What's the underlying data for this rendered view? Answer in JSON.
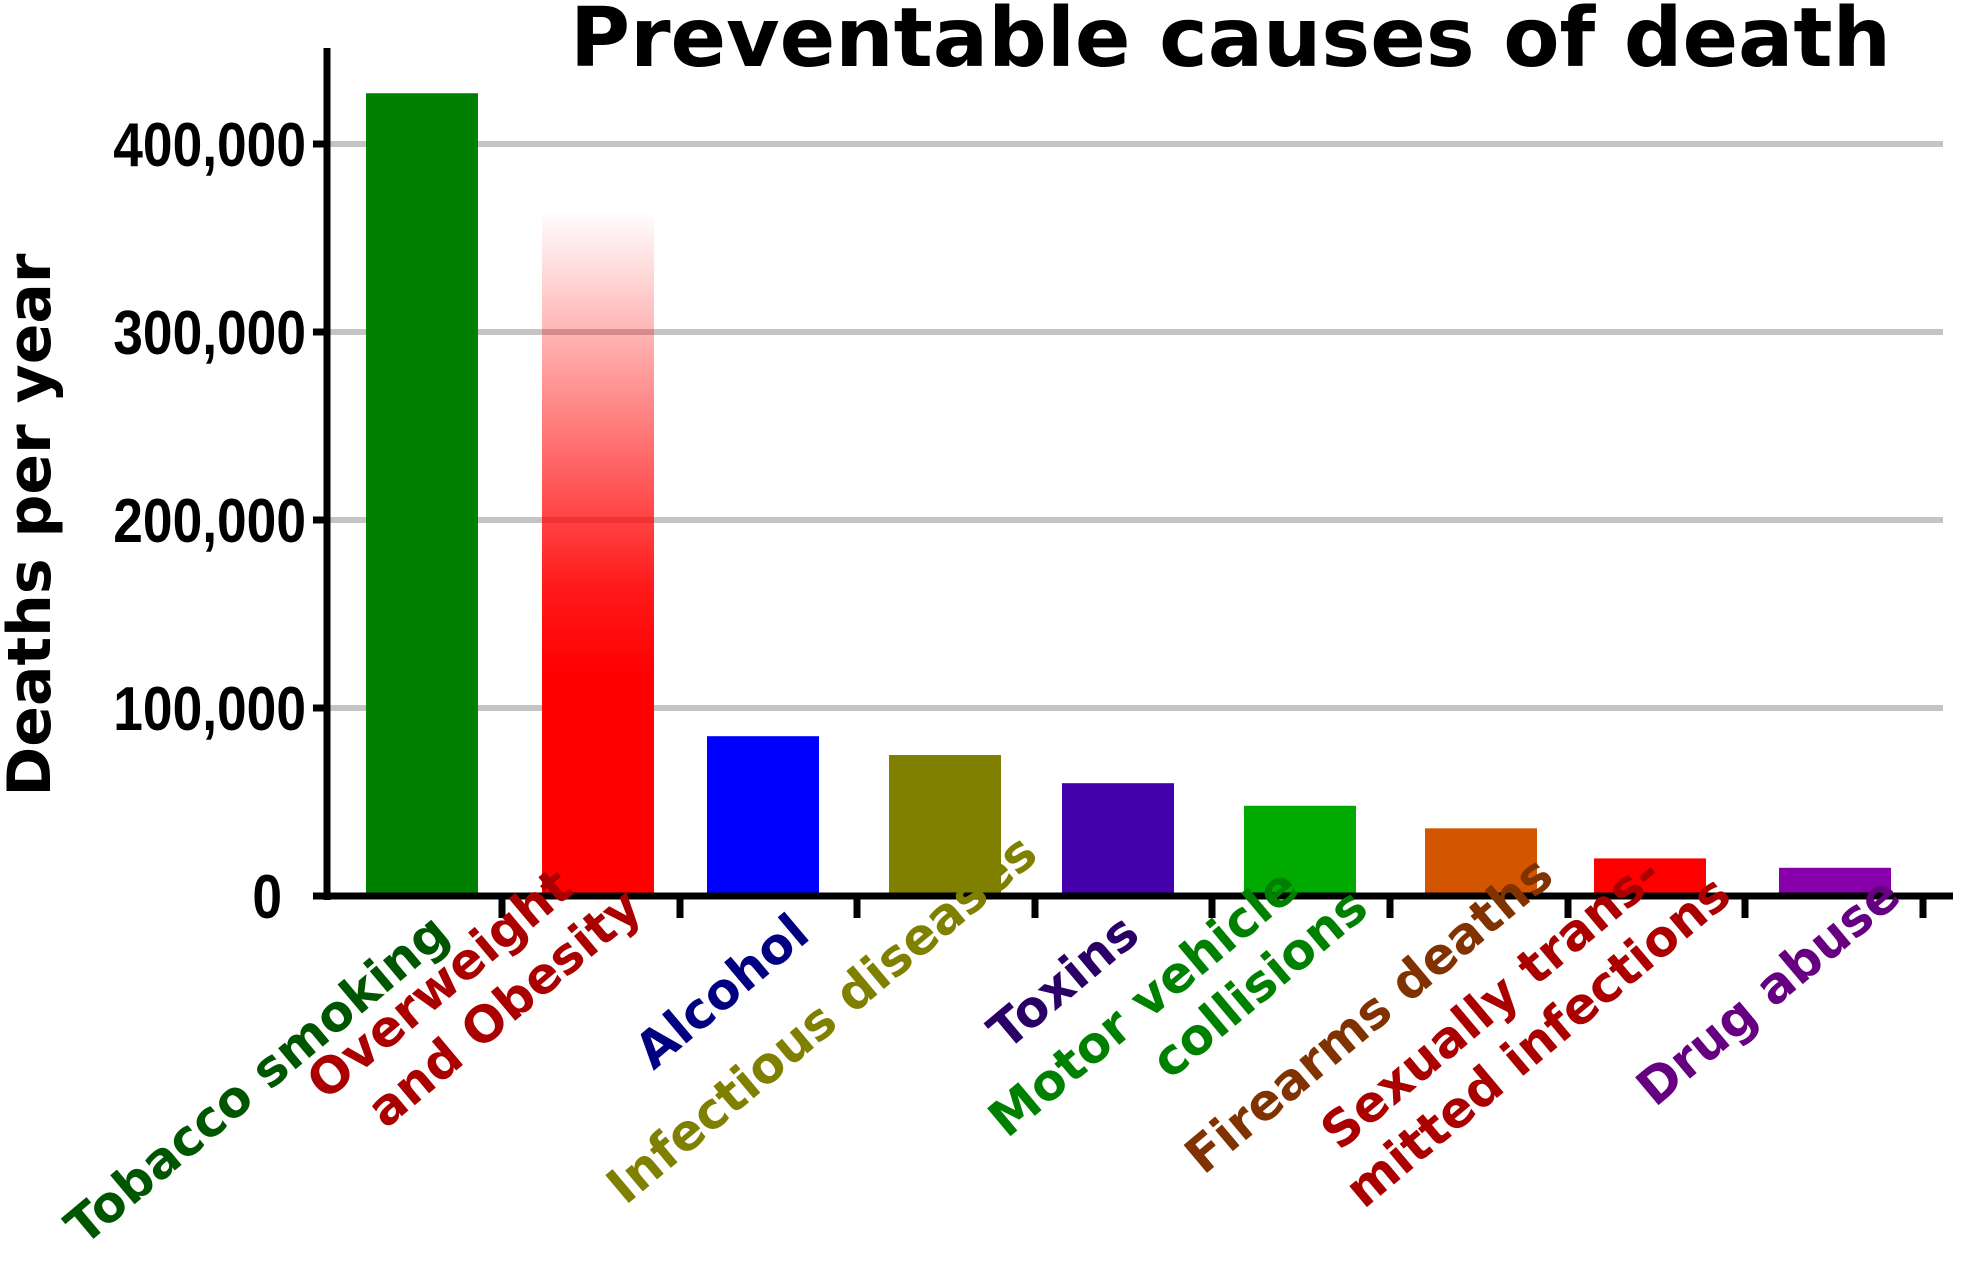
{
  "chart_data": {
    "type": "bar",
    "title": "Preventable causes of death",
    "ylabel": "Deaths per year",
    "xlabel": "",
    "ylim": [
      0,
      440000
    ],
    "yticks": [
      0,
      100000,
      200000,
      300000,
      400000
    ],
    "ytick_labels": [
      "0",
      "100,000",
      "200,000",
      "300,000",
      "400,000"
    ],
    "grid": true,
    "categories": [
      {
        "lines": [
          "Tobacco smoking"
        ],
        "color": "#005500"
      },
      {
        "lines": [
          "Overweight",
          "and Obesity"
        ],
        "color": "#aa0000"
      },
      {
        "lines": [
          "Alcohol"
        ],
        "color": "#000080"
      },
      {
        "lines": [
          "Infectious diseases"
        ],
        "color": "#808000"
      },
      {
        "lines": [
          "Toxins"
        ],
        "color": "#2b0066"
      },
      {
        "lines": [
          "Motor vehicle",
          "collisions"
        ],
        "color": "#008000"
      },
      {
        "lines": [
          "Firearms deaths"
        ],
        "color": "#803300"
      },
      {
        "lines": [
          "Sexually trans-",
          "mitted infections"
        ],
        "color": "#aa0000"
      },
      {
        "lines": [
          "Drug abuse"
        ],
        "color": "#660080"
      }
    ],
    "values": [
      427000,
      365000,
      85000,
      75000,
      60000,
      48000,
      36000,
      20000,
      15000
    ],
    "bar_colors": [
      "#008000",
      "#ff0000",
      "#0000ff",
      "#808000",
      "#4400aa",
      "#00aa00",
      "#d45500",
      "#ff0000",
      "#8800aa"
    ],
    "fade_top_series": 1
  }
}
